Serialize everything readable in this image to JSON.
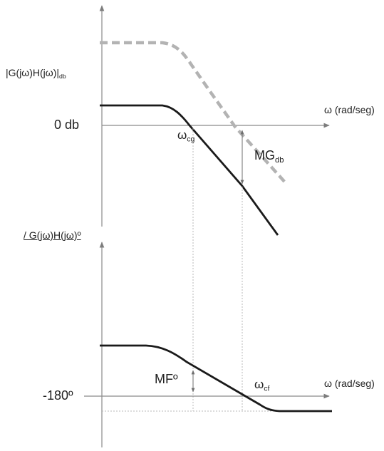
{
  "magnitude_plot": {
    "ylabel": "|G(jω)H(jω)|",
    "ylabel_sub": "db",
    "xlabel": "ω (rad/seg)",
    "ref_label": "0 db",
    "gain_crossover": {
      "symbol": "ω",
      "sub": "cg"
    },
    "gain_margin": {
      "symbol": "MG",
      "sub": "db"
    }
  },
  "phase_plot": {
    "ylabel": "/ G(jω)H(jω)º",
    "xlabel": "ω (rad/seg)",
    "ref_label": "-180º",
    "phase_crossover": {
      "symbol": "ω",
      "sub": "cf"
    },
    "phase_margin": {
      "label": "MFº"
    }
  },
  "colors": {
    "axis": "#8a8a8a",
    "curve": "#1a1a1a",
    "dashed_curve": "#b3b3b3",
    "guide": "#b8b8b8"
  }
}
